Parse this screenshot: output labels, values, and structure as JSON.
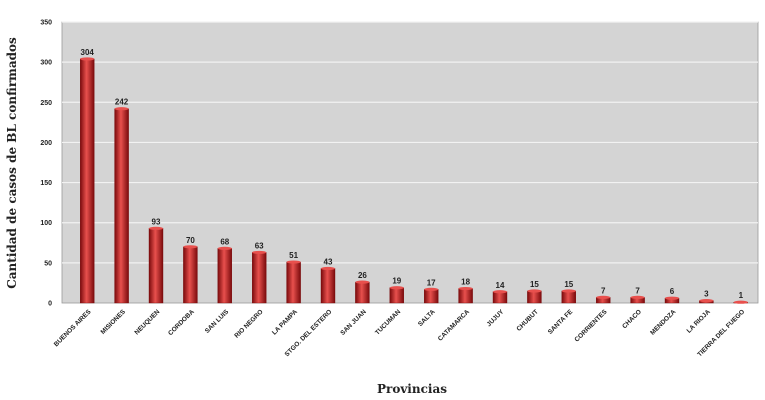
{
  "chart_data": {
    "type": "bar",
    "title": "",
    "xlabel": "Provincias",
    "ylabel": "Cantidad de casos de BL confirmados",
    "ylim": [
      0,
      350
    ],
    "yticks": [
      0,
      50,
      100,
      150,
      200,
      250,
      300,
      350
    ],
    "grid": true,
    "legend": "none",
    "colors": {
      "bar": "#c0181a",
      "bar_dark": "#7a0a0c",
      "bar_light": "#e8504d",
      "plot_bg": "#d4d4d4",
      "gridline": "#f2f2f2"
    },
    "categories": [
      "BUENOS AIRES",
      "MISIONES",
      "NEUQUEN",
      "CORDOBA",
      "SAN LUIS",
      "RIO NEGRO",
      "LA PAMPA",
      "STGO. DEL ESTERO",
      "SAN JUAN",
      "TUCUMAN",
      "SALTA",
      "CATAMARCA",
      "JUJUY",
      "CHUBUT",
      "SANTA FE",
      "CORRIENTES",
      "CHACO",
      "MENDOZA",
      "LA RIOJA",
      "TIERRA DEL FUEGO"
    ],
    "values": [
      304,
      242,
      93,
      70,
      68,
      63,
      51,
      43,
      26,
      19,
      17,
      18,
      14,
      15,
      15,
      7,
      7,
      6,
      3,
      1
    ],
    "value_labels": [
      "304",
      "242",
      "93",
      "70",
      "68",
      "63",
      "51",
      "43",
      "26",
      "19",
      "17",
      "18",
      "14",
      "15",
      "15",
      "7",
      "7",
      "6",
      "3",
      "1"
    ]
  }
}
